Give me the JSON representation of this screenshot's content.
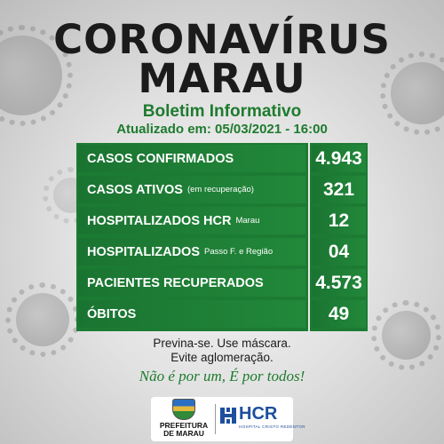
{
  "header": {
    "title_line1": "CORONAVÍRUS",
    "title_line2": "MARAU",
    "subtitle": "Boletim Informativo",
    "updated": "Atualizado em: 05/03/2021 - 16:00"
  },
  "stats": [
    {
      "label": "CASOS CONFIRMADOS",
      "note": "",
      "value": "4.943"
    },
    {
      "label": "CASOS ATIVOS",
      "note": "(em recuperação)",
      "value": "321"
    },
    {
      "label": "HOSPITALIZADOS HCR",
      "note": "Marau",
      "value": "12"
    },
    {
      "label": "HOSPITALIZADOS",
      "note": "Passo F. e Região",
      "value": "04"
    },
    {
      "label": "PACIENTES RECUPERADOS",
      "note": "",
      "value": "4.573"
    },
    {
      "label": "ÓBITOS",
      "note": "",
      "value": "49"
    }
  ],
  "footer": {
    "line1": "Previna-se. Use máscara.",
    "line2": "Evite aglomeração.",
    "slogan": "Não é por um, É por todos!"
  },
  "logos": {
    "prefeitura_line1": "PREFEITURA",
    "prefeitura_line2": "DE MARAU",
    "hcr_name": "HCR",
    "hcr_sub": "HOSPITAL CRISTO REDENTOR"
  },
  "colors": {
    "accent_green": "#1e7b2e",
    "table_green": "#1c7b33",
    "hcr_blue": "#1d4f9c"
  }
}
